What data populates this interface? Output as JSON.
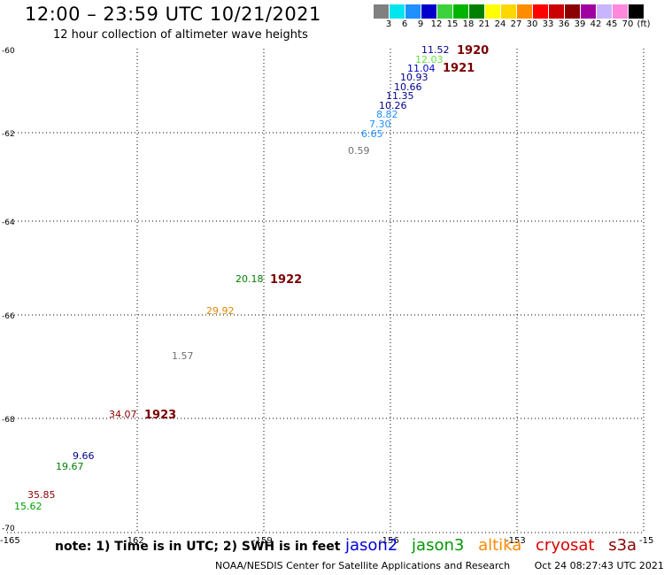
{
  "header": {
    "title": "12:00 – 23:59 UTC 10/21/2021",
    "subtitle": "12 hour collection of altimeter wave heights"
  },
  "legend": {
    "colors": [
      "#808080",
      "#00e5ee",
      "#1e90ff",
      "#0000cd",
      "#3cd23c",
      "#00b400",
      "#008000",
      "#ffff00",
      "#ffd700",
      "#ff8c00",
      "#ff0000",
      "#cc0000",
      "#8b0000",
      "#a000a0",
      "#c8b4ff",
      "#ff88dd",
      "#000000"
    ],
    "labels": [
      "3",
      "6",
      "9",
      "12",
      "15",
      "18",
      "21",
      "24",
      "27",
      "30",
      "33",
      "36",
      "39",
      "42",
      "45",
      "70",
      "(ft)"
    ]
  },
  "axes": {
    "lat_labels": [
      "-60",
      "-62",
      "-64",
      "-66",
      "-68",
      "-70"
    ],
    "lon_labels": [
      "-165",
      "-162",
      "-159",
      "-156",
      "-153",
      "-15"
    ]
  },
  "wave_values": [
    {
      "text": "11.52",
      "color": "#00008b"
    },
    {
      "text": "12.03",
      "color": "#66dd44"
    },
    {
      "text": "11.04",
      "color": "#0000cd"
    },
    {
      "text": "10.93",
      "color": "#00008b"
    },
    {
      "text": "10.66",
      "color": "#00008b"
    },
    {
      "text": "11.35",
      "color": "#00008b"
    },
    {
      "text": "10.26",
      "color": "#00008b"
    },
    {
      "text": "8.82",
      "color": "#1e90ff"
    },
    {
      "text": "7.30",
      "color": "#1e90ff"
    },
    {
      "text": "6.65",
      "color": "#1e90ff"
    },
    {
      "text": "0.59",
      "color": "#707070"
    },
    {
      "text": "20.18",
      "color": "#008000"
    },
    {
      "text": "29.92",
      "color": "#e08800"
    },
    {
      "text": "1.57",
      "color": "#707070"
    },
    {
      "text": "34.07",
      "color": "#8b0000"
    },
    {
      "text": "9.66",
      "color": "#00008b"
    },
    {
      "text": "19.67",
      "color": "#008000"
    },
    {
      "text": "35.85",
      "color": "#8b0000"
    },
    {
      "text": "15.62",
      "color": "#00a000"
    }
  ],
  "revolutions": [
    "1920",
    "1921",
    "1922",
    "1923"
  ],
  "note": "note:  1) Time is in UTC;  2) SWH is in feet",
  "satellites": [
    {
      "name": "jason2",
      "color": "#0000dd"
    },
    {
      "name": "jason3",
      "color": "#009900"
    },
    {
      "name": "altika",
      "color": "#ff8800"
    },
    {
      "name": "cryosat",
      "color": "#dd0000"
    },
    {
      "name": "s3a",
      "color": "#8b0000"
    }
  ],
  "footer": {
    "credit": "NOAA/NESDIS Center for Satellite Applications and Research",
    "date": "Oct 24 08:27:43 UTC 2021"
  }
}
